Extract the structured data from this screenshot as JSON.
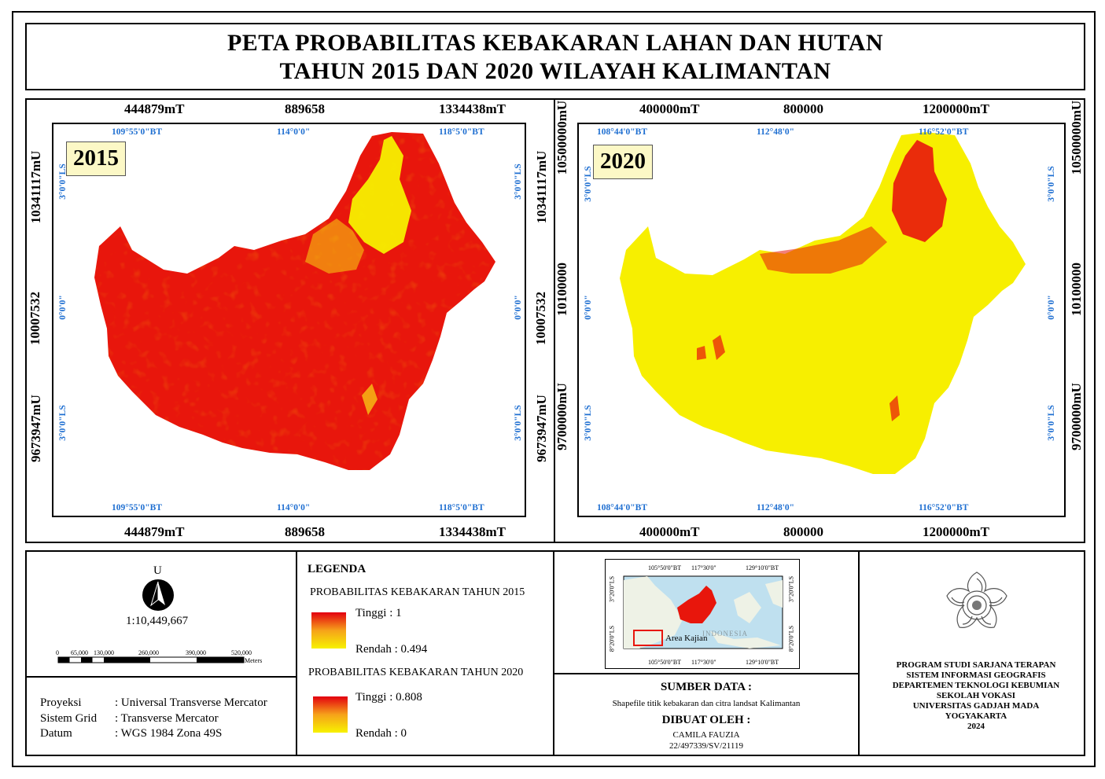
{
  "title": {
    "line1": "PETA PROBABILITAS KEBAKARAN LAHAN DAN HUTAN",
    "line2": "TAHUN 2015 DAN 2020 WILAYAH KALIMANTAN"
  },
  "map2015": {
    "year": "2015",
    "x_top": [
      "444879mT",
      "889658",
      "1334438mT"
    ],
    "x_bottom": [
      "444879mT",
      "889658",
      "1334438mT"
    ],
    "y_left": [
      "10341117mU",
      "10007532",
      "9673947mU"
    ],
    "y_right": [
      "10341117mU",
      "10007532",
      "9673947mU"
    ],
    "lon_top": [
      "109°55'0\"BT",
      "114°0'0\"",
      "118°5'0\"BT"
    ],
    "lon_bottom": [
      "109°55'0\"BT",
      "114°0'0\"",
      "118°5'0\"BT"
    ],
    "lat_left": [
      "3°0'0\"LS",
      "0°0'0\"",
      "3°0'0\"LS"
    ],
    "lat_right": [
      "3°0'0\"LS",
      "0°0'0\"",
      "3°0'0\"LS"
    ],
    "colors": {
      "high": "#e8160c",
      "low": "#f7ef00"
    }
  },
  "map2020": {
    "year": "2020",
    "x_top": [
      "400000mT",
      "800000",
      "1200000mT"
    ],
    "x_bottom": [
      "400000mT",
      "800000",
      "1200000mT"
    ],
    "y_left": [
      "10500000mU",
      "10100000",
      "9700000mU"
    ],
    "y_right": [
      "10500000mU",
      "10100000",
      "9700000mU"
    ],
    "lon_top": [
      "108°44'0\"BT",
      "112°48'0\"",
      "116°52'0\"BT"
    ],
    "lon_bottom": [
      "108°44'0\"BT",
      "112°48'0\"",
      "116°52'0\"BT"
    ],
    "lat_left": [
      "3°0'0\"LS",
      "0°0'0\"",
      "3°0'0\"LS"
    ],
    "lat_right": [
      "3°0'0\"LS",
      "0°0'0\"",
      "3°0'0\"LS"
    ],
    "colors": {
      "high": "#e8160c",
      "low": "#f7ef00"
    }
  },
  "north": {
    "letter": "U",
    "scale": "1:10,449,667"
  },
  "scalebar": {
    "ticks": [
      "0",
      "65,000",
      "130,000",
      "260,000",
      "390,000",
      "520,000"
    ],
    "unit": "Meters"
  },
  "projection": {
    "rows": [
      {
        "label": "Proyeksi",
        "value": ": Universal Transverse Mercator"
      },
      {
        "label": "Sistem Grid",
        "value": ": Transverse Mercator"
      },
      {
        "label": "Datum",
        "value": ": WGS 1984 Zona 49S"
      }
    ]
  },
  "legend": {
    "heading": "LEGENDA",
    "s2015": {
      "title": "PROBABILITAS KEBAKARAN TAHUN 2015",
      "high": "Tinggi : 1",
      "low": "Rendah : 0.494"
    },
    "s2020": {
      "title": "PROBABILITAS KEBAKARAN TAHUN 2020",
      "high": "Tinggi : 0.808",
      "low": "Rendah : 0"
    }
  },
  "inset": {
    "lon_top": [
      "105°50'0\"BT",
      "117°30'0\"",
      "129°10'0\"BT"
    ],
    "lon_bottom": [
      "105°50'0\"BT",
      "117°30'0\"",
      "129°10'0\"BT"
    ],
    "lat_left": [
      "3°20'0\"LS",
      "8°20'0\"LS"
    ],
    "lat_right": [
      "3°20'0\"LS",
      "8°20'0\"LS"
    ],
    "country": "INDONESIA",
    "area_label": "Area Kajian"
  },
  "source": {
    "heading": "SUMBER DATA :",
    "text": "Shapefile titik kebakaran dan citra landsat Kalimantan"
  },
  "author": {
    "heading": "DIBUAT OLEH :",
    "name": "CAMILA FAUZIA",
    "id": "22/497339/SV/21119"
  },
  "institution": {
    "lines": [
      "PROGRAM STUDI SARJANA TERAPAN",
      "SISTEM INFORMASI GEOGRAFIS",
      "DEPARTEMEN TEKNOLOGI KEBUMIAN",
      "SEKOLAH VOKASI",
      "UNIVERSITAS GADJAH MADA",
      "YOGYAKARTA",
      "2024"
    ]
  }
}
